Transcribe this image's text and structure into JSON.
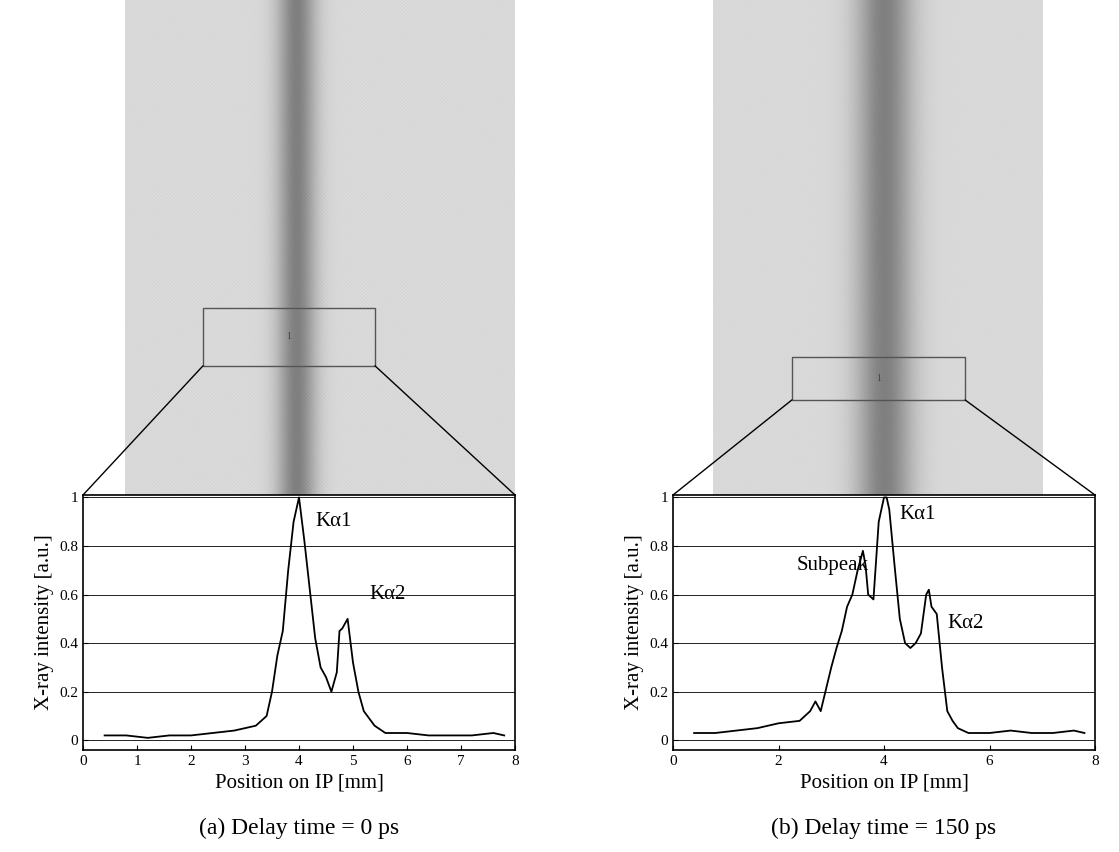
{
  "chart_data": [
    {
      "type": "line",
      "title": "(a) Delay time = 0 ps",
      "x_label": "Position on IP [mm]",
      "y_label": "X-ray intensity [a.u.]",
      "x": [
        0.4,
        0.8,
        1.2,
        1.6,
        2.0,
        2.4,
        2.8,
        3.0,
        3.2,
        3.4,
        3.5,
        3.6,
        3.7,
        3.8,
        3.9,
        4.0,
        4.1,
        4.2,
        4.3,
        4.4,
        4.5,
        4.6,
        4.7,
        4.75,
        4.8,
        4.9,
        5.0,
        5.1,
        5.2,
        5.4,
        5.6,
        6.0,
        6.4,
        6.8,
        7.2,
        7.6,
        7.8
      ],
      "values": [
        0.02,
        0.02,
        0.01,
        0.02,
        0.02,
        0.03,
        0.04,
        0.05,
        0.06,
        0.1,
        0.2,
        0.35,
        0.45,
        0.7,
        0.9,
        1.0,
        0.82,
        0.62,
        0.42,
        0.3,
        0.26,
        0.2,
        0.28,
        0.45,
        0.46,
        0.5,
        0.32,
        0.2,
        0.12,
        0.06,
        0.03,
        0.03,
        0.02,
        0.02,
        0.02,
        0.03,
        0.02
      ],
      "color": "#000000",
      "xlim": [
        0,
        8
      ],
      "ylim": [
        -0.04,
        1.01
      ],
      "xticks": [
        0,
        1,
        2,
        3,
        4,
        5,
        6,
        7,
        8
      ],
      "yticks": [
        0,
        0.2,
        0.4,
        0.6,
        0.8,
        1
      ],
      "grid": true,
      "annotations": [
        "Kα1",
        "Kα2"
      ],
      "region_label": "1"
    },
    {
      "type": "line",
      "title": "(b) Delay time = 150 ps",
      "x_label": "Position on IP [mm]",
      "y_label": "X-ray intensity [a.u.]",
      "x": [
        0.4,
        0.8,
        1.2,
        1.6,
        2.0,
        2.4,
        2.6,
        2.7,
        2.8,
        3.0,
        3.1,
        3.2,
        3.3,
        3.4,
        3.5,
        3.6,
        3.65,
        3.7,
        3.8,
        3.9,
        4.0,
        4.05,
        4.1,
        4.2,
        4.3,
        4.4,
        4.5,
        4.6,
        4.7,
        4.8,
        4.85,
        4.9,
        5.0,
        5.1,
        5.2,
        5.3,
        5.4,
        5.6,
        6.0,
        6.4,
        6.8,
        7.2,
        7.6,
        7.8
      ],
      "values": [
        0.03,
        0.03,
        0.04,
        0.05,
        0.07,
        0.08,
        0.12,
        0.16,
        0.12,
        0.3,
        0.38,
        0.45,
        0.55,
        0.6,
        0.7,
        0.78,
        0.72,
        0.6,
        0.58,
        0.9,
        1.0,
        1.0,
        0.95,
        0.72,
        0.5,
        0.4,
        0.38,
        0.4,
        0.44,
        0.6,
        0.62,
        0.55,
        0.52,
        0.3,
        0.12,
        0.08,
        0.05,
        0.03,
        0.03,
        0.04,
        0.03,
        0.03,
        0.04,
        0.03
      ],
      "color": "#000000",
      "xlim": [
        0,
        8
      ],
      "ylim": [
        -0.04,
        1.01
      ],
      "xticks": [
        0,
        2,
        4,
        6,
        8
      ],
      "yticks": [
        0,
        0.2,
        0.4,
        0.6,
        0.8,
        1
      ],
      "grid": true,
      "annotations": [
        "Subpeak",
        "Kα1",
        "Kα2"
      ],
      "region_label": "1"
    }
  ]
}
